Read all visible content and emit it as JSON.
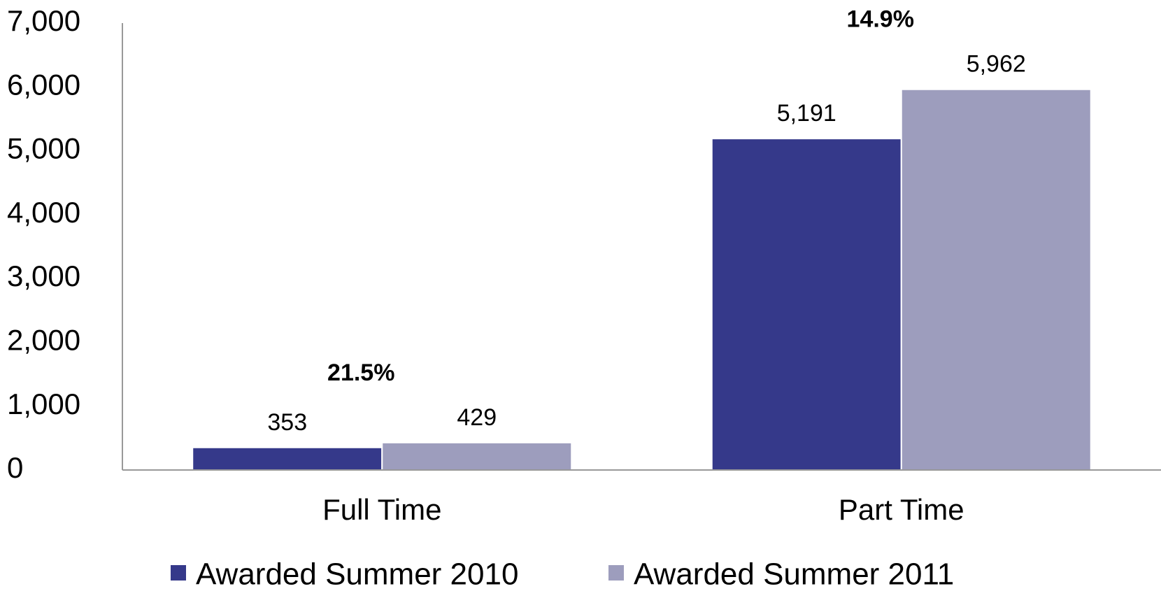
{
  "chart_data": {
    "type": "bar",
    "categories": [
      "Full Time",
      "Part Time"
    ],
    "series": [
      {
        "name": "Awarded Summer 2010",
        "color": "#35398a",
        "values": [
          353,
          5191
        ],
        "value_labels": [
          "353",
          "5,191"
        ]
      },
      {
        "name": "Awarded Summer 2011",
        "color": "#9d9dbd",
        "values": [
          429,
          5962
        ],
        "value_labels": [
          "429",
          "5,962"
        ]
      }
    ],
    "annotations": [
      "21.5%",
      "14.9%"
    ],
    "ylim": [
      0,
      7000
    ],
    "yticks": [
      0,
      {
        "value": 1000,
        "label": "1,000"
      },
      {
        "value": 2000,
        "label": "2,000"
      },
      {
        "value": 3000,
        "label": "3,000"
      },
      {
        "value": 4000,
        "label": "4,000"
      },
      {
        "value": 5000,
        "label": "5,000"
      },
      {
        "value": 6000,
        "label": "6,000"
      },
      {
        "value": 7000,
        "label": "7,000"
      }
    ],
    "grid": false,
    "legend": "bottom"
  }
}
